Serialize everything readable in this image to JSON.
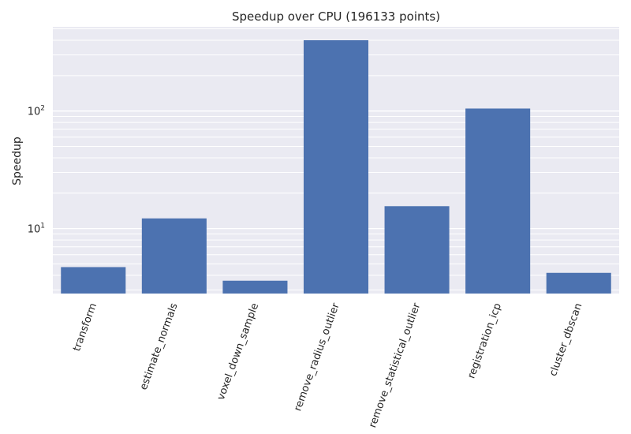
{
  "chart_data": {
    "type": "bar",
    "title": "Speedup over CPU (196133 points)",
    "xlabel": "",
    "ylabel": "Speedup",
    "yscale": "log",
    "ylim": [
      2.8,
      520
    ],
    "y_ticks": [
      {
        "value": 10,
        "base": "10",
        "exp": "1"
      },
      {
        "value": 100,
        "base": "10",
        "exp": "2"
      }
    ],
    "grid": true,
    "categories": [
      "transform",
      "estimate_normals",
      "voxel_down_sample",
      "remove_radius_outlier",
      "remove_statistical_outlier",
      "registration_icp",
      "cluster_dbscan"
    ],
    "values": [
      4.7,
      12.2,
      3.6,
      400,
      15.5,
      105,
      4.2
    ],
    "colors": {
      "bar": "#4c72b0",
      "plot_bg": "#eaeaf2",
      "grid": "#ffffff"
    }
  }
}
